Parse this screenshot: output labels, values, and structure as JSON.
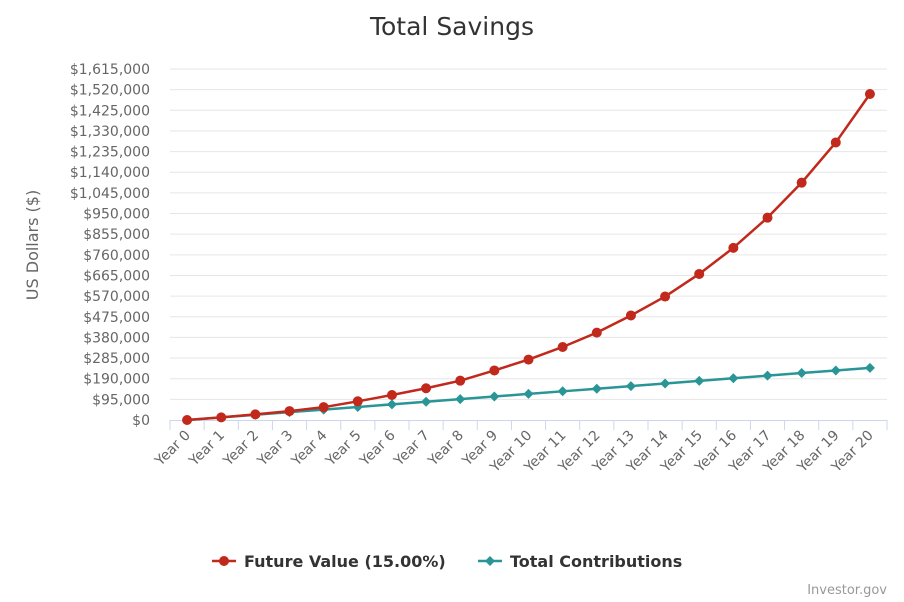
{
  "chart_data": {
    "type": "line",
    "title": "Total Savings",
    "ylabel": "US Dollars ($)",
    "xlabel": "",
    "categories": [
      "Year 0",
      "Year 1",
      "Year 2",
      "Year 3",
      "Year 4",
      "Year 5",
      "Year 6",
      "Year 7",
      "Year 8",
      "Year 9",
      "Year 10",
      "Year 11",
      "Year 12",
      "Year 13",
      "Year 14",
      "Year 15",
      "Year 16",
      "Year 17",
      "Year 18",
      "Year 19",
      "Year 20"
    ],
    "y_ticks": [
      0,
      95000,
      190000,
      285000,
      380000,
      475000,
      570000,
      665000,
      760000,
      855000,
      950000,
      1045000,
      1140000,
      1235000,
      1330000,
      1425000,
      1520000,
      1615000
    ],
    "y_tick_labels": [
      "$0",
      "$95,000",
      "$190,000",
      "$285,000",
      "$380,000",
      "$475,000",
      "$570,000",
      "$665,000",
      "$760,000",
      "$855,000",
      "$950,000",
      "$1,045,000",
      "$1,140,000",
      "$1,235,000",
      "$1,330,000",
      "$1,425,000",
      "$1,520,000",
      "$1,615,000"
    ],
    "ylim": [
      0,
      1615000
    ],
    "grid": true,
    "legend_position": "bottom-center",
    "series": [
      {
        "name": "Future Value (15.00%)",
        "color": "#c0291b",
        "marker": "circle",
        "values": [
          0,
          12000,
          26000,
          41000,
          59000,
          86000,
          115000,
          146000,
          181000,
          228000,
          278000,
          336000,
          402000,
          481000,
          568000,
          672000,
          792000,
          931000,
          1092000,
          1277000,
          1500000
        ]
      },
      {
        "name": "Total Contributions",
        "color": "#2a9596",
        "marker": "diamond",
        "values": [
          0,
          12000,
          24000,
          36000,
          48000,
          60000,
          72000,
          84000,
          96000,
          108000,
          120000,
          132000,
          144000,
          156000,
          168000,
          180000,
          192000,
          204000,
          216000,
          228000,
          240000
        ]
      }
    ],
    "credit": "Investor.gov"
  }
}
